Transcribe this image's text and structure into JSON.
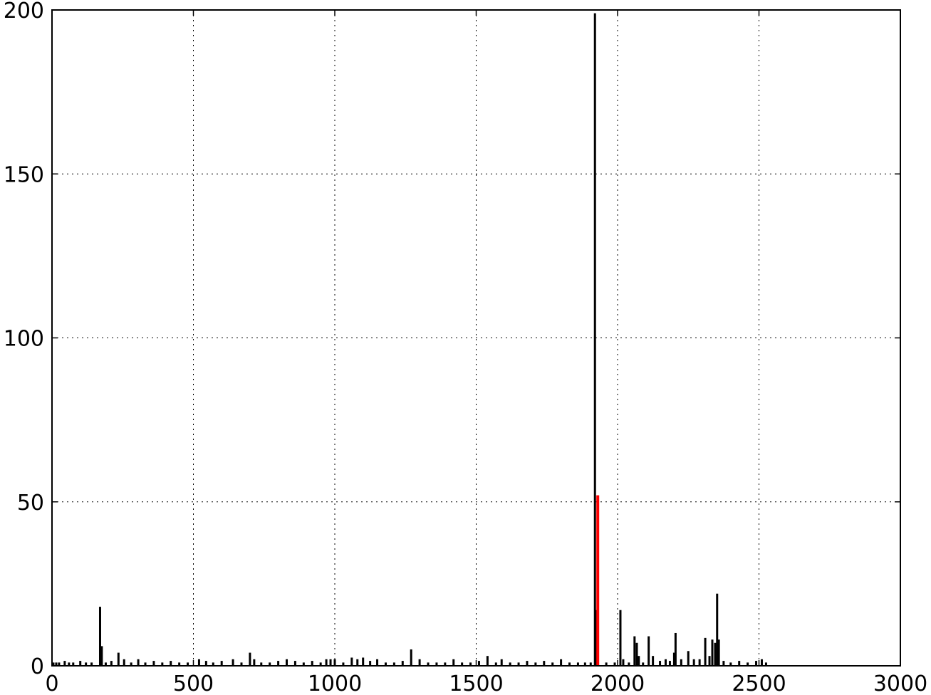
{
  "chart_data": {
    "type": "bar",
    "title": "",
    "xlabel": "",
    "ylabel": "",
    "xlim": [
      0,
      3000
    ],
    "ylim": [
      0,
      200
    ],
    "x_ticks": [
      "0",
      "500",
      "1000",
      "1500",
      "2000",
      "2500",
      "3000"
    ],
    "y_ticks": [
      "0",
      "50",
      "100",
      "150",
      "200"
    ],
    "grid": true,
    "series": [
      {
        "color": "#000000",
        "points": [
          {
            "x": 5,
            "y": 1
          },
          {
            "x": 15,
            "y": 1
          },
          {
            "x": 25,
            "y": 1
          },
          {
            "x": 45,
            "y": 1.5
          },
          {
            "x": 60,
            "y": 1
          },
          {
            "x": 75,
            "y": 1
          },
          {
            "x": 100,
            "y": 1.5
          },
          {
            "x": 120,
            "y": 1
          },
          {
            "x": 140,
            "y": 1
          },
          {
            "x": 170,
            "y": 18
          },
          {
            "x": 176,
            "y": 6
          },
          {
            "x": 190,
            "y": 1
          },
          {
            "x": 210,
            "y": 1.5
          },
          {
            "x": 235,
            "y": 4
          },
          {
            "x": 255,
            "y": 2
          },
          {
            "x": 280,
            "y": 1
          },
          {
            "x": 305,
            "y": 2
          },
          {
            "x": 330,
            "y": 1
          },
          {
            "x": 360,
            "y": 1.5
          },
          {
            "x": 390,
            "y": 1
          },
          {
            "x": 420,
            "y": 1.5
          },
          {
            "x": 450,
            "y": 1
          },
          {
            "x": 480,
            "y": 1
          },
          {
            "x": 520,
            "y": 2
          },
          {
            "x": 545,
            "y": 1.5
          },
          {
            "x": 570,
            "y": 1
          },
          {
            "x": 600,
            "y": 1.5
          },
          {
            "x": 640,
            "y": 2
          },
          {
            "x": 670,
            "y": 1
          },
          {
            "x": 700,
            "y": 4
          },
          {
            "x": 715,
            "y": 2
          },
          {
            "x": 740,
            "y": 1
          },
          {
            "x": 770,
            "y": 1
          },
          {
            "x": 800,
            "y": 1.5
          },
          {
            "x": 830,
            "y": 2
          },
          {
            "x": 860,
            "y": 1.5
          },
          {
            "x": 890,
            "y": 1
          },
          {
            "x": 920,
            "y": 1.5
          },
          {
            "x": 950,
            "y": 1
          },
          {
            "x": 970,
            "y": 2
          },
          {
            "x": 985,
            "y": 2
          },
          {
            "x": 1000,
            "y": 2
          },
          {
            "x": 1030,
            "y": 1
          },
          {
            "x": 1060,
            "y": 2.5
          },
          {
            "x": 1080,
            "y": 2
          },
          {
            "x": 1100,
            "y": 2.5
          },
          {
            "x": 1125,
            "y": 1.5
          },
          {
            "x": 1150,
            "y": 2
          },
          {
            "x": 1180,
            "y": 1
          },
          {
            "x": 1210,
            "y": 1
          },
          {
            "x": 1240,
            "y": 1.5
          },
          {
            "x": 1270,
            "y": 5
          },
          {
            "x": 1300,
            "y": 2
          },
          {
            "x": 1330,
            "y": 1
          },
          {
            "x": 1360,
            "y": 1
          },
          {
            "x": 1390,
            "y": 1
          },
          {
            "x": 1420,
            "y": 2
          },
          {
            "x": 1450,
            "y": 1
          },
          {
            "x": 1480,
            "y": 1
          },
          {
            "x": 1510,
            "y": 1.5
          },
          {
            "x": 1540,
            "y": 3
          },
          {
            "x": 1570,
            "y": 1
          },
          {
            "x": 1590,
            "y": 2
          },
          {
            "x": 1620,
            "y": 1
          },
          {
            "x": 1650,
            "y": 1
          },
          {
            "x": 1680,
            "y": 1.5
          },
          {
            "x": 1710,
            "y": 1
          },
          {
            "x": 1740,
            "y": 1.5
          },
          {
            "x": 1770,
            "y": 1
          },
          {
            "x": 1800,
            "y": 2
          },
          {
            "x": 1830,
            "y": 1
          },
          {
            "x": 1860,
            "y": 1
          },
          {
            "x": 1885,
            "y": 1
          },
          {
            "x": 1905,
            "y": 1
          },
          {
            "x": 1920,
            "y": 199
          },
          {
            "x": 1925,
            "y": 17
          },
          {
            "x": 1960,
            "y": 1
          },
          {
            "x": 1990,
            "y": 1
          },
          {
            "x": 2010,
            "y": 17
          },
          {
            "x": 2020,
            "y": 2
          },
          {
            "x": 2040,
            "y": 1
          },
          {
            "x": 2060,
            "y": 9
          },
          {
            "x": 2068,
            "y": 7
          },
          {
            "x": 2075,
            "y": 3
          },
          {
            "x": 2090,
            "y": 1
          },
          {
            "x": 2110,
            "y": 9
          },
          {
            "x": 2125,
            "y": 3
          },
          {
            "x": 2150,
            "y": 1.5
          },
          {
            "x": 2170,
            "y": 2
          },
          {
            "x": 2185,
            "y": 1.5
          },
          {
            "x": 2200,
            "y": 4
          },
          {
            "x": 2205,
            "y": 10
          },
          {
            "x": 2225,
            "y": 2
          },
          {
            "x": 2250,
            "y": 4.5
          },
          {
            "x": 2270,
            "y": 2
          },
          {
            "x": 2290,
            "y": 2
          },
          {
            "x": 2310,
            "y": 8.5
          },
          {
            "x": 2325,
            "y": 3
          },
          {
            "x": 2335,
            "y": 8
          },
          {
            "x": 2345,
            "y": 7
          },
          {
            "x": 2352,
            "y": 22
          },
          {
            "x": 2358,
            "y": 8
          },
          {
            "x": 2375,
            "y": 1.5
          },
          {
            "x": 2400,
            "y": 1
          },
          {
            "x": 2430,
            "y": 1.5
          },
          {
            "x": 2460,
            "y": 1
          },
          {
            "x": 2490,
            "y": 1.5
          },
          {
            "x": 2510,
            "y": 2
          },
          {
            "x": 2525,
            "y": 1
          }
        ]
      },
      {
        "color": "#ff0000",
        "points": [
          {
            "x": 1930,
            "y": 52
          }
        ]
      }
    ]
  }
}
